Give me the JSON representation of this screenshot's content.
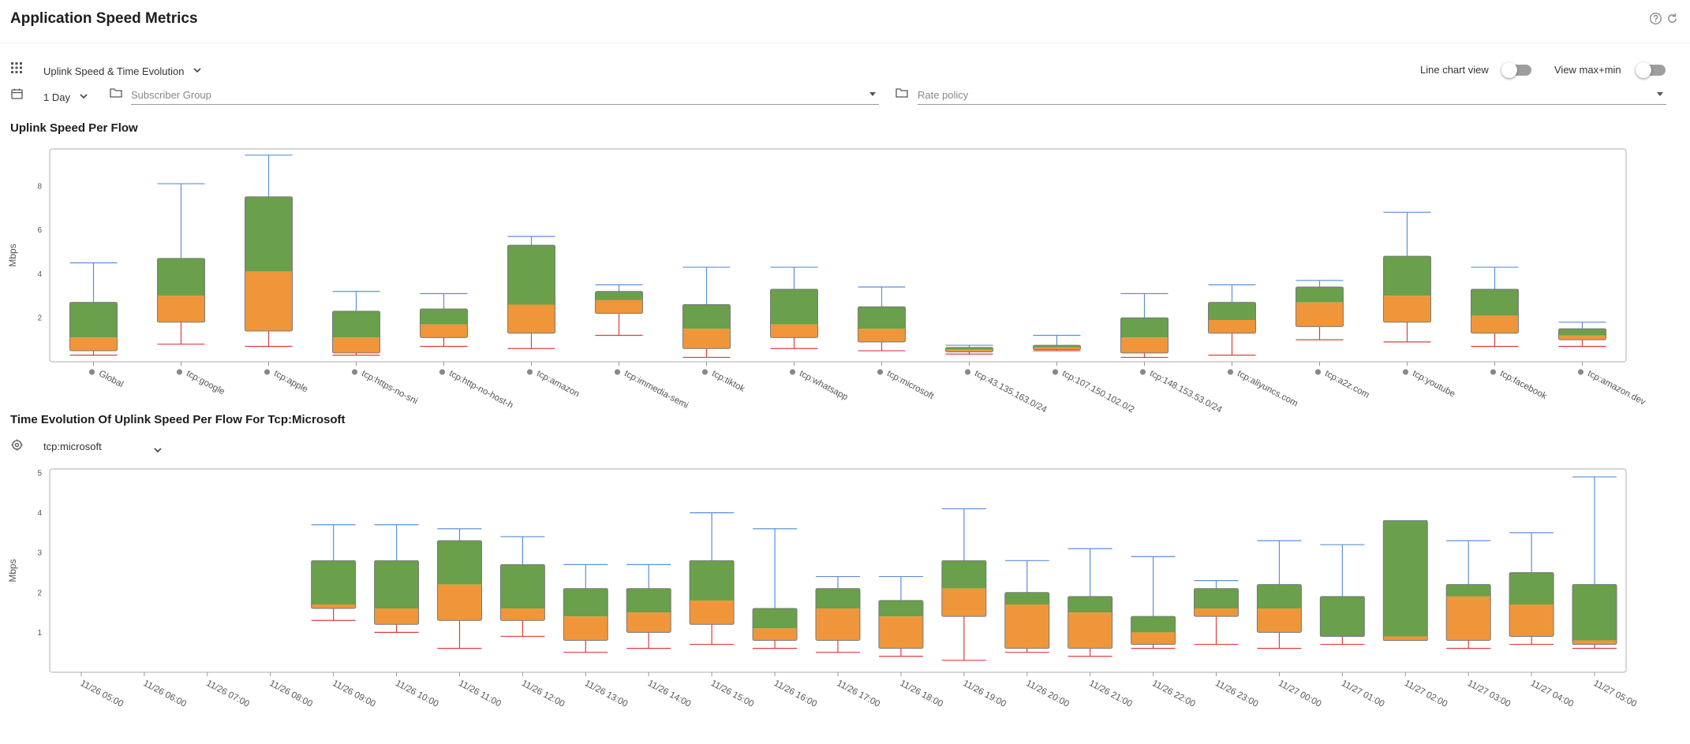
{
  "page": {
    "title": "Application Speed Metrics"
  },
  "toolbar": {
    "view_select": "Uplink Speed & Time Evolution",
    "period_select": "1 Day",
    "subscriber_group_placeholder": "Subscriber Group",
    "rate_policy_placeholder": "Rate policy",
    "line_chart_label": "Line chart view",
    "max_min_label": "View max+min",
    "line_chart_on": false,
    "max_min_on": false
  },
  "section1": {
    "title": "Uplink Speed Per Flow"
  },
  "section2": {
    "title": "Time Evolution Of Uplink Speed Per Flow For Tcp:Microsoft",
    "flow_select": "tcp:microsoft"
  },
  "colors": {
    "upper": "#6a9f4c",
    "lower": "#f0963a",
    "whisker_top": "#5b8fd9",
    "whisker_bottom": "#e03c3c",
    "box_border": "#7a7a7a",
    "frame": "#bdbdbd"
  },
  "chart_data": [
    {
      "type": "boxplot",
      "title": "Uplink Speed Per Flow",
      "ylabel": "Mbps",
      "ylim": [
        0,
        9.5
      ],
      "yticks": [
        2,
        4,
        6,
        8
      ],
      "categories": [
        "Global",
        "tcp:google",
        "tcp:apple",
        "tcp:https-no-sni",
        "tcp:http-no-host-h",
        "tcp:amazon",
        "tcp:immedia-semi",
        "tcp:tiktok",
        "tcp:whatsapp",
        "tcp:microsoft",
        "tcp:43.135.163.0/24",
        "tcp:107.150.102.0/2",
        "tcp:148.153.53.0/24",
        "tcp:aliyuncs.com",
        "tcp:a2z.com",
        "tcp:youtube",
        "tcp:facebook",
        "tcp:amazon.dev"
      ],
      "series": [
        {
          "name": "Global",
          "min": 0.3,
          "q1": 0.5,
          "median": 1.1,
          "q3": 2.7,
          "max": 4.5
        },
        {
          "name": "tcp:google",
          "min": 0.8,
          "q1": 1.8,
          "median": 3.0,
          "q3": 4.7,
          "max": 8.1
        },
        {
          "name": "tcp:apple",
          "min": 0.7,
          "q1": 1.4,
          "median": 4.1,
          "q3": 7.5,
          "max": 9.4
        },
        {
          "name": "tcp:https-no-sni",
          "min": 0.3,
          "q1": 0.4,
          "median": 1.1,
          "q3": 2.3,
          "max": 3.2
        },
        {
          "name": "tcp:http-no-host-h",
          "min": 0.7,
          "q1": 1.1,
          "median": 1.7,
          "q3": 2.4,
          "max": 3.1
        },
        {
          "name": "tcp:amazon",
          "min": 0.6,
          "q1": 1.3,
          "median": 2.6,
          "q3": 5.3,
          "max": 5.7
        },
        {
          "name": "tcp:immedia-semi",
          "min": 1.2,
          "q1": 2.2,
          "median": 2.8,
          "q3": 3.2,
          "max": 3.5
        },
        {
          "name": "tcp:tiktok",
          "min": 0.2,
          "q1": 0.6,
          "median": 1.5,
          "q3": 2.6,
          "max": 4.3
        },
        {
          "name": "tcp:whatsapp",
          "min": 0.6,
          "q1": 1.1,
          "median": 1.7,
          "q3": 3.3,
          "max": 4.3
        },
        {
          "name": "tcp:microsoft",
          "min": 0.5,
          "q1": 0.9,
          "median": 1.5,
          "q3": 2.5,
          "max": 3.4
        },
        {
          "name": "tcp:43.135.163.0/24",
          "min": 0.35,
          "q1": 0.45,
          "median": 0.55,
          "q3": 0.65,
          "max": 0.75
        },
        {
          "name": "tcp:107.150.102.0/2",
          "min": 0.5,
          "q1": 0.55,
          "median": 0.65,
          "q3": 0.75,
          "max": 1.2
        },
        {
          "name": "tcp:148.153.53.0/24",
          "min": 0.2,
          "q1": 0.4,
          "median": 1.1,
          "q3": 2.0,
          "max": 3.1
        },
        {
          "name": "tcp:aliyuncs.com",
          "min": 0.3,
          "q1": 1.3,
          "median": 1.9,
          "q3": 2.7,
          "max": 3.5
        },
        {
          "name": "tcp:a2z.com",
          "min": 1.0,
          "q1": 1.6,
          "median": 2.7,
          "q3": 3.4,
          "max": 3.7
        },
        {
          "name": "tcp:youtube",
          "min": 0.9,
          "q1": 1.8,
          "median": 3.0,
          "q3": 4.8,
          "max": 6.8
        },
        {
          "name": "tcp:facebook",
          "min": 0.7,
          "q1": 1.3,
          "median": 2.1,
          "q3": 3.3,
          "max": 4.3
        },
        {
          "name": "tcp:amazon.dev",
          "min": 0.7,
          "q1": 1.0,
          "median": 1.2,
          "q3": 1.5,
          "max": 1.8
        }
      ]
    },
    {
      "type": "boxplot",
      "title": "Time Evolution Of Uplink Speed Per Flow For Tcp:Microsoft",
      "ylabel": "Mbps",
      "ylim": [
        0,
        5
      ],
      "yticks": [
        1,
        2,
        3,
        4,
        5
      ],
      "categories": [
        "11/26 05:00",
        "11/26 06:00",
        "11/26 07:00",
        "11/26 08:00",
        "11/26 09:00",
        "11/26 10:00",
        "11/26 11:00",
        "11/26 12:00",
        "11/26 13:00",
        "11/26 14:00",
        "11/26 15:00",
        "11/26 16:00",
        "11/26 17:00",
        "11/26 18:00",
        "11/26 19:00",
        "11/26 20:00",
        "11/26 21:00",
        "11/26 22:00",
        "11/26 23:00",
        "11/27 00:00",
        "11/27 01:00",
        "11/27 02:00",
        "11/27 03:00",
        "11/27 04:00",
        "11/27 05:00"
      ],
      "series": [
        null,
        null,
        null,
        null,
        {
          "name": "11/26 09:00",
          "min": 1.3,
          "q1": 1.6,
          "median": 1.7,
          "q3": 2.8,
          "max": 3.7
        },
        {
          "name": "11/26 10:00",
          "min": 1.0,
          "q1": 1.2,
          "median": 1.6,
          "q3": 2.8,
          "max": 3.7
        },
        {
          "name": "11/26 11:00",
          "min": 0.6,
          "q1": 1.3,
          "median": 2.2,
          "q3": 3.3,
          "max": 3.6
        },
        {
          "name": "11/26 12:00",
          "min": 0.9,
          "q1": 1.3,
          "median": 1.6,
          "q3": 2.7,
          "max": 3.4
        },
        {
          "name": "11/26 13:00",
          "min": 0.5,
          "q1": 0.8,
          "median": 1.4,
          "q3": 2.1,
          "max": 2.7
        },
        {
          "name": "11/26 14:00",
          "min": 0.6,
          "q1": 1.0,
          "median": 1.5,
          "q3": 2.1,
          "max": 2.7
        },
        {
          "name": "11/26 15:00",
          "min": 0.7,
          "q1": 1.2,
          "median": 1.8,
          "q3": 2.8,
          "max": 4.0
        },
        {
          "name": "11/26 16:00",
          "min": 0.6,
          "q1": 0.8,
          "median": 1.1,
          "q3": 1.6,
          "max": 3.6
        },
        {
          "name": "11/26 17:00",
          "min": 0.5,
          "q1": 0.8,
          "median": 1.6,
          "q3": 2.1,
          "max": 2.4
        },
        {
          "name": "11/26 18:00",
          "min": 0.4,
          "q1": 0.6,
          "median": 1.4,
          "q3": 1.8,
          "max": 2.4
        },
        {
          "name": "11/26 19:00",
          "min": 0.3,
          "q1": 1.4,
          "median": 2.1,
          "q3": 2.8,
          "max": 4.1
        },
        {
          "name": "11/26 20:00",
          "min": 0.5,
          "q1": 0.6,
          "median": 1.7,
          "q3": 2.0,
          "max": 2.8
        },
        {
          "name": "11/26 21:00",
          "min": 0.4,
          "q1": 0.6,
          "median": 1.5,
          "q3": 1.9,
          "max": 3.1
        },
        {
          "name": "11/26 22:00",
          "min": 0.6,
          "q1": 0.7,
          "median": 1.0,
          "q3": 1.4,
          "max": 2.9
        },
        {
          "name": "11/26 23:00",
          "min": 0.7,
          "q1": 1.4,
          "median": 1.6,
          "q3": 2.1,
          "max": 2.3
        },
        {
          "name": "11/27 00:00",
          "min": 0.6,
          "q1": 1.0,
          "median": 1.6,
          "q3": 2.2,
          "max": 3.3
        },
        {
          "name": "11/27 01:00",
          "min": 0.7,
          "q1": 0.9,
          "median": 0.9,
          "q3": 1.9,
          "max": 3.2
        },
        {
          "name": "11/27 02:00",
          "min": 0.8,
          "q1": 0.8,
          "median": 0.9,
          "q3": 3.8,
          "max": 3.8
        },
        {
          "name": "11/27 03:00",
          "min": 0.6,
          "q1": 0.8,
          "median": 1.9,
          "q3": 2.2,
          "max": 3.3
        },
        {
          "name": "11/27 04:00",
          "min": 0.7,
          "q1": 0.9,
          "median": 1.7,
          "q3": 2.5,
          "max": 3.5
        },
        {
          "name": "11/27 05:00",
          "min": 0.6,
          "q1": 0.7,
          "median": 0.8,
          "q3": 2.2,
          "max": 4.9
        }
      ]
    }
  ]
}
